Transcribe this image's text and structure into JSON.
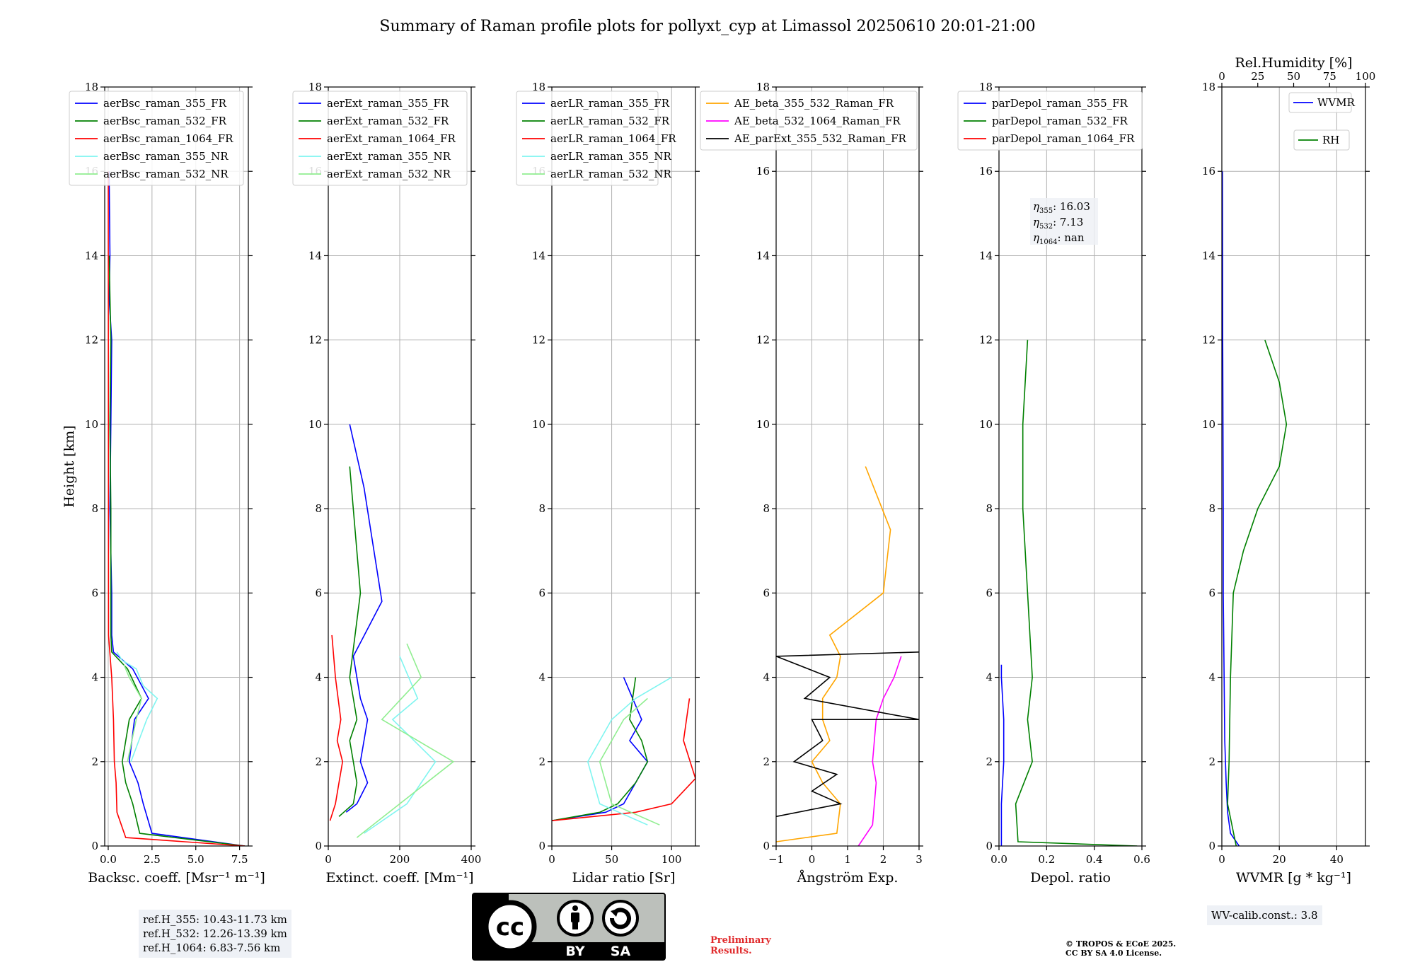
{
  "title": "Summary of Raman profile plots for pollyxt_cyp at Limassol 20250610 20:01-21:00",
  "ylabel": "Height [km]",
  "panels": [
    {
      "id": "bsc",
      "xlabel": "Backsc. coeff. [Msr⁻¹ m⁻¹]",
      "xlim": [
        -0.2,
        8.0
      ],
      "xticks": [
        0,
        2.5,
        5.0,
        7.5
      ],
      "xticklabels": [
        "0.0",
        "2.5",
        "5.0",
        "7.5"
      ],
      "legend": [
        {
          "label": "aerBsc_raman_355_FR",
          "color": "#0000ff"
        },
        {
          "label": "aerBsc_raman_532_FR",
          "color": "#008000"
        },
        {
          "label": "aerBsc_raman_1064_FR",
          "color": "#ff0000"
        },
        {
          "label": "aerBsc_raman_355_NR",
          "color": "#7ff5f0"
        },
        {
          "label": "aerBsc_raman_532_NR",
          "color": "#90ee90"
        }
      ]
    },
    {
      "id": "ext",
      "xlabel": "Extinct. coeff. [Mm⁻¹]",
      "xlim": [
        0,
        400
      ],
      "xticks": [
        0,
        200,
        400
      ],
      "xticklabels": [
        "0",
        "200",
        "400"
      ],
      "legend": [
        {
          "label": "aerExt_raman_355_FR",
          "color": "#0000ff"
        },
        {
          "label": "aerExt_raman_532_FR",
          "color": "#008000"
        },
        {
          "label": "aerExt_raman_1064_FR",
          "color": "#ff0000"
        },
        {
          "label": "aerExt_raman_355_NR",
          "color": "#7ff5f0"
        },
        {
          "label": "aerExt_raman_532_NR",
          "color": "#90ee90"
        }
      ]
    },
    {
      "id": "lr",
      "xlabel": "Lidar ratio [Sr]",
      "xlim": [
        0,
        120
      ],
      "xticks": [
        0,
        50,
        100
      ],
      "xticklabels": [
        "0",
        "50",
        "100"
      ],
      "legend": [
        {
          "label": "aerLR_raman_355_FR",
          "color": "#0000ff"
        },
        {
          "label": "aerLR_raman_532_FR",
          "color": "#008000"
        },
        {
          "label": "aerLR_raman_1064_FR",
          "color": "#ff0000"
        },
        {
          "label": "aerLR_raman_355_NR",
          "color": "#7ff5f0"
        },
        {
          "label": "aerLR_raman_532_NR",
          "color": "#90ee90"
        }
      ]
    },
    {
      "id": "ae",
      "xlabel": "Ångström Exp.",
      "xlim": [
        -1,
        3
      ],
      "xticks": [
        -1,
        0,
        1,
        2,
        3
      ],
      "xticklabels": [
        "−1",
        "0",
        "1",
        "2",
        "3"
      ],
      "legend": [
        {
          "label": "AE_beta_355_532_Raman_FR",
          "color": "#ffa500"
        },
        {
          "label": "AE_beta_532_1064_Raman_FR",
          "color": "#ff00ff"
        },
        {
          "label": "AE_parExt_355_532_Raman_FR",
          "color": "#000000"
        }
      ]
    },
    {
      "id": "dep",
      "xlabel": "Depol. ratio",
      "xlim": [
        0,
        0.6
      ],
      "xticks": [
        0,
        0.2,
        0.4,
        0.6
      ],
      "xticklabels": [
        "0.0",
        "0.2",
        "0.4",
        "0.6"
      ],
      "legend": [
        {
          "label": "parDepol_raman_355_FR",
          "color": "#0000ff"
        },
        {
          "label": "parDepol_raman_532_FR",
          "color": "#008000"
        },
        {
          "label": "parDepol_raman_1064_FR",
          "color": "#ff0000"
        }
      ],
      "eta": [
        "16.03",
        "7.13",
        "nan"
      ]
    },
    {
      "id": "wv",
      "xlabel": "WVMR [g * kg⁻¹]",
      "xlim": [
        0,
        50
      ],
      "xticks": [
        0,
        20,
        40
      ],
      "xticklabels": [
        "0",
        "20",
        "40"
      ],
      "top_xlabel": "Rel.Humidity [%]",
      "top_xlim": [
        0,
        100
      ],
      "top_xticks": [
        0,
        25,
        50,
        75,
        100
      ],
      "top_xticklabels": [
        "0",
        "25",
        "50",
        "75",
        "100"
      ],
      "legend": [
        {
          "label": "WVMR",
          "color": "#0000ff"
        },
        {
          "label": "RH",
          "color": "#008000"
        }
      ]
    }
  ],
  "ylim": [
    0,
    18
  ],
  "yticks": [
    0,
    2,
    4,
    6,
    8,
    10,
    12,
    14,
    16,
    18
  ],
  "chart_data": {
    "type": "line",
    "title": "Summary of Raman profile plots for pollyxt_cyp at Limassol 20250610 20:01-21:00",
    "ylabel": "Height [km]",
    "ylim": [
      0,
      18
    ],
    "grid": true,
    "panels": [
      {
        "xlabel": "Backsc. coeff. [Msr-1 m-1]",
        "xlim": [
          -0.2,
          8.0
        ],
        "series": [
          {
            "name": "aerBsc_raman_355_FR",
            "x": [
              7.8,
              2.5,
              2.0,
              1.7,
              1.2,
              1.5,
              2.3,
              1.4,
              0.3,
              0.2,
              0.2,
              0.1,
              0.15,
              0.2,
              0.05,
              0.1,
              0.05
            ],
            "y": [
              0.0,
              0.3,
              1.0,
              1.5,
              2.0,
              3.0,
              3.5,
              4.2,
              4.6,
              5.0,
              6.0,
              8.0,
              10.0,
              12.0,
              13.0,
              14.0,
              16.0
            ]
          },
          {
            "name": "aerBsc_raman_532_FR",
            "x": [
              7.8,
              1.8,
              1.4,
              1.0,
              0.8,
              1.2,
              1.9,
              1.1,
              0.2,
              0.15,
              0.15,
              0.1,
              0.15,
              0.05
            ],
            "y": [
              0.0,
              0.3,
              1.0,
              1.5,
              2.0,
              3.0,
              3.5,
              4.2,
              4.6,
              5.0,
              8.0,
              10.0,
              12.0,
              14.0
            ]
          },
          {
            "name": "aerBsc_raman_1064_FR",
            "x": [
              7.8,
              1.0,
              0.5,
              0.45,
              0.35,
              0.3,
              0.2,
              0.02,
              0.0
            ],
            "y": [
              0.0,
              0.2,
              0.8,
              1.5,
              2.0,
              3.0,
              4.0,
              5.0,
              16.0
            ]
          },
          {
            "name": "aerBsc_raman_355_NR",
            "x": [
              1.3,
              2.2,
              2.8,
              2.0,
              1.6,
              0.8,
              0.5
            ],
            "y": [
              2.0,
              3.0,
              3.5,
              3.8,
              4.2,
              4.4,
              4.6
            ]
          },
          {
            "name": "aerBsc_raman_532_NR",
            "x": [
              1.1,
              1.6,
              1.9,
              1.2,
              0.9
            ],
            "y": [
              2.0,
              3.0,
              3.5,
              4.0,
              4.3
            ]
          }
        ]
      },
      {
        "xlabel": "Extinct. coeff. [Mm-1]",
        "xlim": [
          0,
          400
        ],
        "series": [
          {
            "name": "aerExt_raman_355_FR",
            "x": [
              50,
              80,
              110,
              90,
              100,
              110,
              90,
              80,
              70,
              150,
              100,
              60
            ],
            "y": [
              0.8,
              1.0,
              1.5,
              2.0,
              2.5,
              3.0,
              3.5,
              4.0,
              4.5,
              5.8,
              8.5,
              10.0
            ]
          },
          {
            "name": "aerExt_raman_532_FR",
            "x": [
              30,
              70,
              80,
              70,
              60,
              80,
              70,
              60,
              90,
              60
            ],
            "y": [
              0.7,
              1.0,
              1.5,
              2.0,
              2.5,
              3.0,
              3.5,
              4.0,
              6.0,
              9.0
            ]
          },
          {
            "name": "aerExt_raman_1064_FR",
            "x": [
              5,
              20,
              30,
              40,
              25,
              35,
              20,
              10
            ],
            "y": [
              0.6,
              1.0,
              1.5,
              2.0,
              2.5,
              3.0,
              4.0,
              5.0
            ]
          },
          {
            "name": "aerExt_raman_355_NR",
            "x": [
              100,
              220,
              300,
              180,
              250,
              200
            ],
            "y": [
              0.3,
              1.0,
              2.0,
              3.0,
              3.5,
              4.5
            ]
          },
          {
            "name": "aerExt_raman_532_NR",
            "x": [
              80,
              200,
              350,
              150,
              260,
              220
            ],
            "y": [
              0.2,
              1.0,
              2.0,
              3.0,
              4.0,
              4.8
            ]
          }
        ]
      },
      {
        "xlabel": "Lidar ratio [Sr]",
        "xlim": [
          0,
          120
        ],
        "series": [
          {
            "name": "aerLR_raman_355_FR",
            "x": [
              0,
              45,
              60,
              70,
              80,
              65,
              75,
              60
            ],
            "y": [
              0.6,
              0.8,
              1.0,
              1.5,
              2.0,
              2.5,
              3.0,
              4.0
            ]
          },
          {
            "name": "aerLR_raman_532_FR",
            "x": [
              0,
              40,
              55,
              70,
              80,
              75,
              65,
              70
            ],
            "y": [
              0.6,
              0.8,
              1.0,
              1.5,
              2.0,
              2.5,
              3.0,
              4.0
            ]
          },
          {
            "name": "aerLR_raman_1064_FR",
            "x": [
              0,
              70,
              100,
              120,
              110,
              115
            ],
            "y": [
              0.6,
              0.8,
              1.0,
              1.6,
              2.5,
              3.5
            ]
          },
          {
            "name": "aerLR_raman_355_NR",
            "x": [
              80,
              40,
              30,
              50,
              70,
              100
            ],
            "y": [
              0.5,
              1.0,
              2.0,
              3.0,
              3.5,
              4.0
            ]
          },
          {
            "name": "aerLR_raman_532_NR",
            "x": [
              90,
              50,
              40,
              60,
              80
            ],
            "y": [
              0.5,
              1.0,
              2.0,
              3.0,
              3.5
            ]
          }
        ]
      },
      {
        "xlabel": "Angstrom Exp.",
        "xlim": [
          -1,
          3
        ],
        "series": [
          {
            "name": "AE_beta_355_532_Raman_FR",
            "x": [
              -1.0,
              0.7,
              0.8,
              0.3,
              0.0,
              0.5,
              0.3,
              0.3,
              0.7,
              0.8,
              0.5,
              2.0,
              2.2,
              1.5
            ],
            "y": [
              0.1,
              0.3,
              1.0,
              1.5,
              2.0,
              2.5,
              3.0,
              3.5,
              4.0,
              4.5,
              5.0,
              6.0,
              7.5,
              9.0
            ]
          },
          {
            "name": "AE_beta_532_1064_Raman_FR",
            "x": [
              1.3,
              1.7,
              1.8,
              1.7,
              1.8,
              2.0,
              2.3,
              2.5
            ],
            "y": [
              0.0,
              0.5,
              1.5,
              2.0,
              3.0,
              3.5,
              4.0,
              4.5
            ]
          },
          {
            "name": "AE_parExt_355_532_Raman_FR",
            "x": [
              -1.0,
              0.8,
              0.0,
              0.7,
              -0.5,
              0.3,
              0.0,
              3.0,
              -0.2,
              0.5,
              -1.0,
              3.0
            ],
            "y": [
              0.7,
              1.0,
              1.3,
              1.7,
              2.0,
              2.5,
              3.0,
              3.0,
              3.5,
              4.0,
              4.5,
              4.6
            ]
          }
        ]
      },
      {
        "xlabel": "Depol. ratio",
        "xlim": [
          0,
          0.6
        ],
        "series": [
          {
            "name": "parDepol_raman_355_FR",
            "x": [
              0.01,
              0.01,
              0.02,
              0.02,
              0.01,
              0.01
            ],
            "y": [
              0.0,
              1.0,
              2.0,
              3.0,
              4.0,
              4.3
            ]
          },
          {
            "name": "parDepol_raman_532_FR",
            "x": [
              0.58,
              0.08,
              0.07,
              0.14,
              0.12,
              0.14,
              0.12,
              0.1,
              0.1,
              0.12
            ],
            "y": [
              0.0,
              0.1,
              1.0,
              2.0,
              3.0,
              4.0,
              6.0,
              8.0,
              10.0,
              12.0
            ]
          },
          {
            "name": "parDepol_raman_1064_FR",
            "x": [],
            "y": []
          }
        ],
        "annotations": [
          "eta_355: 16.03",
          "eta_532: 7.13",
          "eta_1064: nan"
        ]
      },
      {
        "xlabel": "WVMR [g*kg-1]",
        "xlim": [
          0,
          50
        ],
        "top_xlabel": "Rel.Humidity [%]",
        "top_xlim": [
          0,
          100
        ],
        "series": [
          {
            "name": "WVMR",
            "x": [
              6,
              3,
              2,
              1.5,
              1.0,
              0.8,
              0.5,
              0.5,
              0.3,
              0.2
            ],
            "y": [
              0.0,
              0.3,
              0.8,
              1.5,
              2.5,
              4.0,
              6.0,
              8.0,
              12.0,
              16.0
            ]
          },
          {
            "name": "RH",
            "x": [
              10,
              4,
              5,
              6,
              8,
              15,
              25,
              40,
              45,
              40,
              30
            ],
            "y": [
              0.0,
              1.0,
              2.0,
              4.0,
              6.0,
              7.0,
              8.0,
              9.0,
              10.0,
              11.0,
              12.0
            ]
          }
        ]
      }
    ]
  },
  "ref_box": {
    "lines": [
      "ref.H_355: 10.43-11.73 km",
      "ref.H_532: 12.26-13.39 km",
      "ref.H_1064: 6.83-7.56 km"
    ]
  },
  "wv_box": "WV-calib.const.: 3.8",
  "preliminary": [
    "Preliminary",
    "Results."
  ],
  "copyright": [
    "© TROPOS & ECoE 2025.",
    "CC BY SA 4.0 License."
  ],
  "badge": {
    "cc": "cc",
    "by": "BY",
    "sa": "SA"
  }
}
